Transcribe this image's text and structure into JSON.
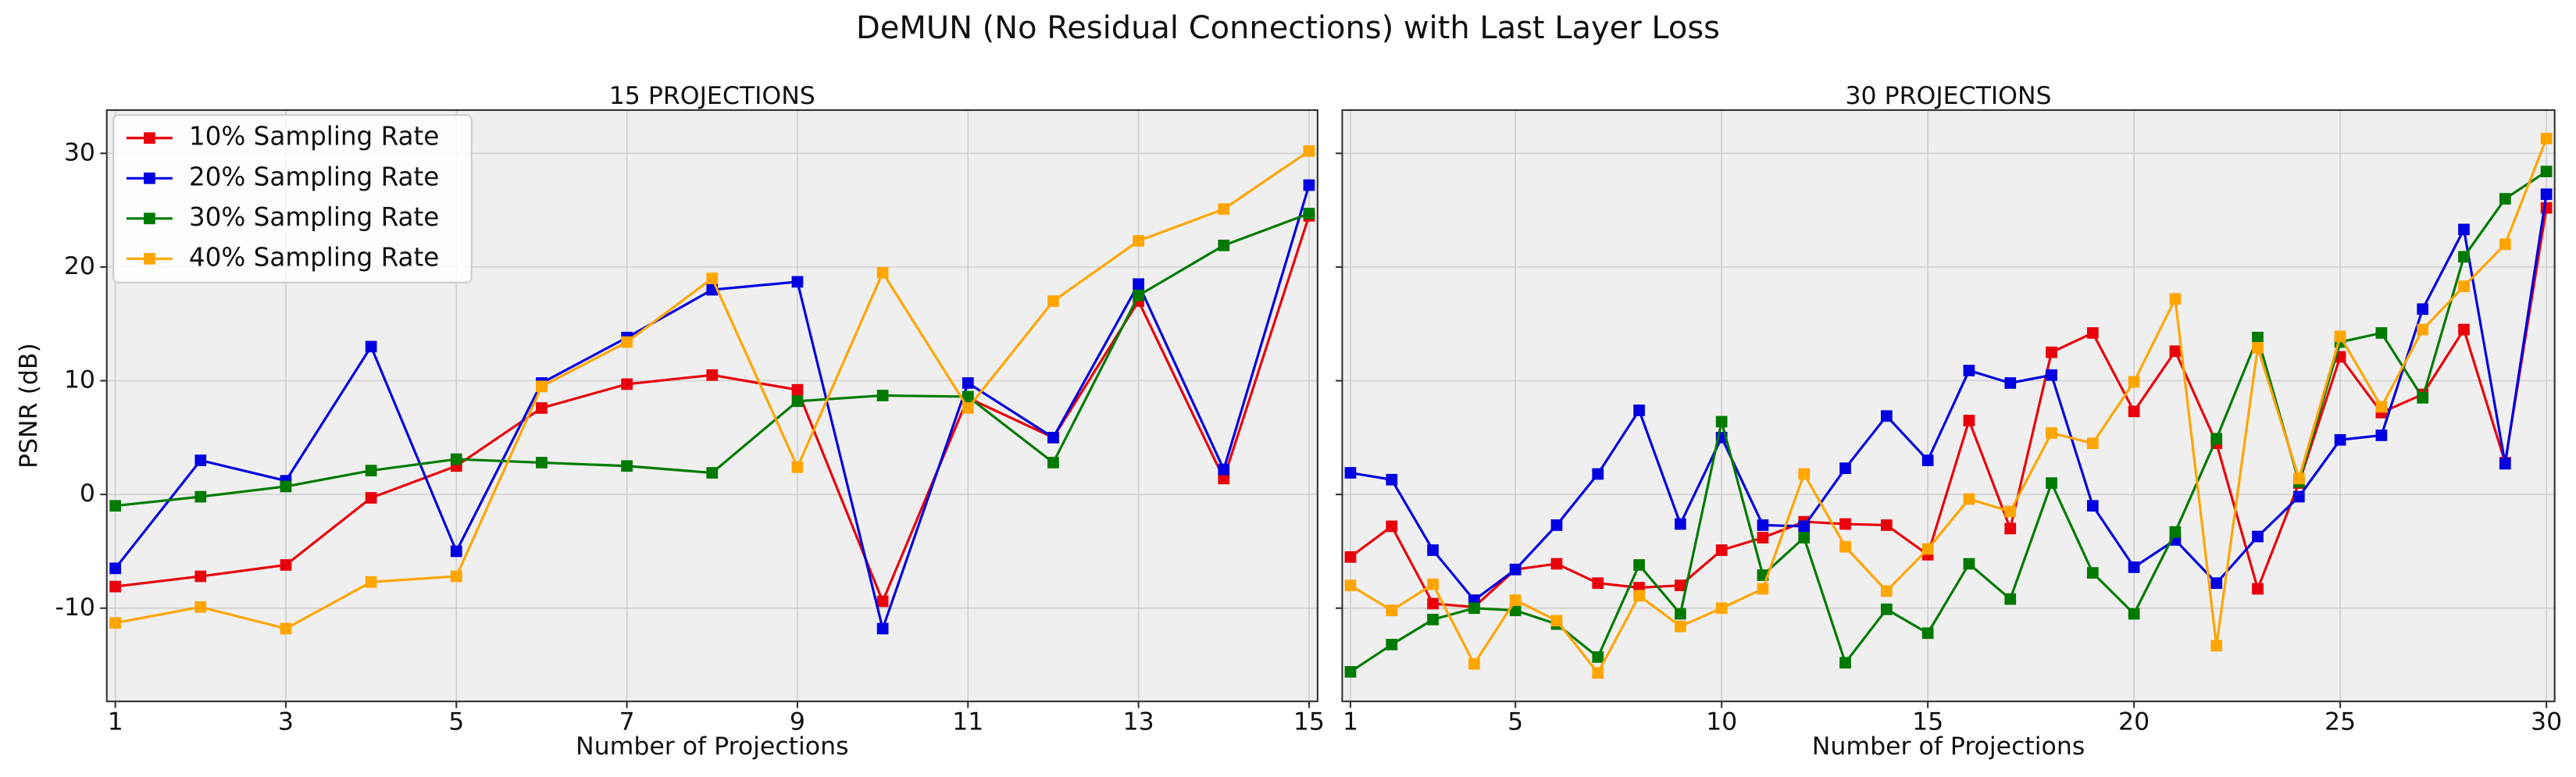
{
  "title": "DeMUN (No Residual Connections) with Last Layer Loss",
  "chart_data": [
    {
      "type": "line",
      "title": "15 PROJECTIONS",
      "xlabel": "Number of Projections",
      "ylabel": "PSNR (dB)",
      "x": [
        1,
        2,
        3,
        4,
        5,
        6,
        7,
        8,
        9,
        10,
        11,
        12,
        13,
        14,
        15
      ],
      "xlim": [
        0.9,
        15.1
      ],
      "ylim": [
        -18.2,
        33.8
      ],
      "xticks": [
        1,
        3,
        5,
        7,
        9,
        11,
        13,
        15
      ],
      "yticks": [
        -10,
        0,
        10,
        20,
        30
      ],
      "grid": true,
      "legend": "upper left",
      "series": [
        {
          "name": "10% Sampling Rate",
          "color": "#e8000b",
          "values": [
            -8.1,
            -7.2,
            -6.2,
            -0.3,
            2.5,
            7.6,
            9.7,
            10.5,
            9.2,
            -9.4,
            8.5,
            5.0,
            17.0,
            1.4,
            24.5
          ]
        },
        {
          "name": "20% Sampling Rate",
          "color": "#0000e0",
          "values": [
            -6.5,
            3.0,
            1.2,
            13.0,
            -5.0,
            9.8,
            13.8,
            18.0,
            18.7,
            -11.8,
            9.8,
            5.0,
            18.5,
            2.2,
            27.2
          ]
        },
        {
          "name": "30% Sampling Rate",
          "color": "#007a00",
          "values": [
            -1.0,
            -0.2,
            0.7,
            2.1,
            3.1,
            2.8,
            2.5,
            1.9,
            8.2,
            8.7,
            8.6,
            2.8,
            17.5,
            21.9,
            24.7
          ]
        },
        {
          "name": "40% Sampling Rate",
          "color": "#ffa500",
          "values": [
            -11.3,
            -9.9,
            -11.8,
            -7.7,
            -7.2,
            9.5,
            13.4,
            19.0,
            2.4,
            19.5,
            7.6,
            17.0,
            22.3,
            25.1,
            30.2
          ]
        }
      ]
    },
    {
      "type": "line",
      "title": "30 PROJECTIONS",
      "xlabel": "Number of Projections",
      "x": [
        1,
        2,
        3,
        4,
        5,
        6,
        7,
        8,
        9,
        10,
        11,
        12,
        13,
        14,
        15,
        16,
        17,
        18,
        19,
        20,
        21,
        22,
        23,
        24,
        25,
        26,
        27,
        28,
        29,
        30
      ],
      "xlim": [
        0.8,
        30.2
      ],
      "ylim": [
        -18.2,
        33.8
      ],
      "xticks": [
        1,
        5,
        10,
        15,
        20,
        25,
        30
      ],
      "yticks": [
        -10,
        0,
        10,
        20,
        30
      ],
      "grid": true,
      "series": [
        {
          "color": "#e8000b",
          "values": [
            -5.5,
            -2.8,
            -9.6,
            -9.9,
            -6.6,
            -6.1,
            -7.8,
            -8.2,
            -8.0,
            -4.9,
            -3.8,
            -2.4,
            -2.6,
            -2.7,
            -5.3,
            6.5,
            -3.0,
            12.5,
            14.2,
            7.3,
            12.6,
            4.5,
            -8.3,
            1.0,
            12.1,
            7.2,
            8.8,
            14.5,
            2.8,
            25.2
          ]
        },
        {
          "color": "#0000e0",
          "values": [
            1.9,
            1.3,
            -4.9,
            -9.3,
            -6.6,
            -2.7,
            1.8,
            7.4,
            -2.6,
            5.0,
            -2.7,
            -2.8,
            2.3,
            6.9,
            3.0,
            10.9,
            9.8,
            10.5,
            -1.0,
            -6.4,
            -4.0,
            -7.8,
            -3.7,
            -0.2,
            4.8,
            5.2,
            16.3,
            23.3,
            2.7,
            26.4
          ]
        },
        {
          "color": "#007a00",
          "values": [
            -15.6,
            -13.2,
            -11.0,
            -10.0,
            -10.2,
            -11.4,
            -14.3,
            -6.2,
            -10.5,
            6.4,
            -7.1,
            -3.8,
            -14.8,
            -10.1,
            -12.2,
            -6.1,
            -9.2,
            1.0,
            -6.9,
            -10.5,
            -3.3,
            4.9,
            13.8,
            1.1,
            13.4,
            14.2,
            8.5,
            20.9,
            26.0,
            28.4
          ]
        },
        {
          "color": "#ffa500",
          "values": [
            -8.0,
            -10.2,
            -7.9,
            -14.9,
            -9.3,
            -11.1,
            -15.7,
            -8.9,
            -11.6,
            -10.0,
            -8.3,
            1.8,
            -4.6,
            -8.5,
            -4.8,
            -0.4,
            -1.5,
            5.4,
            4.5,
            9.9,
            17.2,
            -13.3,
            12.9,
            1.4,
            13.9,
            7.7,
            14.5,
            18.3,
            22.0,
            31.3
          ]
        }
      ]
    }
  ]
}
